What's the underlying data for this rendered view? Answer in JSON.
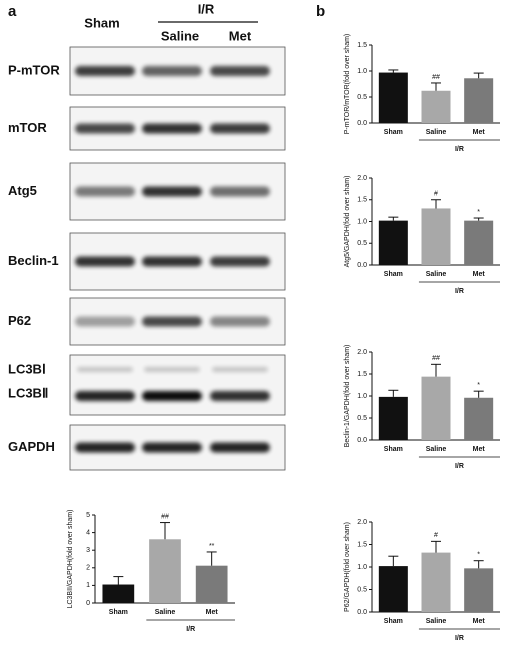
{
  "panels": [
    "a",
    "b"
  ],
  "blot": {
    "groups": {
      "sham": "Sham",
      "ir": "I/R",
      "saline": "Saline",
      "met": "Met"
    },
    "rows": [
      "P-mTOR",
      "mTOR",
      "Atg5",
      "Beclin-1",
      "P62",
      "LC3BⅠ",
      "LC3BⅡ",
      "GAPDH"
    ]
  },
  "chart_data": [
    {
      "type": "bar",
      "ylabel": "P-mTOR/mTOR(fold over sham)",
      "group": "I/R",
      "categories": [
        "Sham",
        "Saline",
        "Met"
      ],
      "values": [
        0.97,
        0.62,
        0.86
      ],
      "errors": [
        0.05,
        0.15,
        0.1
      ],
      "annotations": [
        null,
        "##",
        null
      ],
      "colors": [
        "#111111",
        "#a8a8a8",
        "#7a7a7a"
      ],
      "ylim": [
        0,
        1.5
      ],
      "yticks": [
        {
          "value": 0,
          "label": "0.0"
        },
        0.5,
        {
          "value": 1,
          "label": "1.0"
        },
        1.5
      ]
    },
    {
      "type": "bar",
      "ylabel": "Atg5/GAPDH(fold over sham)",
      "group": "I/R",
      "categories": [
        "Sham",
        "Saline",
        "Met"
      ],
      "values": [
        1.02,
        1.3,
        1.02
      ],
      "errors": [
        0.08,
        0.2,
        0.06
      ],
      "annotations": [
        null,
        "#",
        "*"
      ],
      "colors": [
        "#111111",
        "#a8a8a8",
        "#7a7a7a"
      ],
      "ylim": [
        0,
        2
      ],
      "yticks": [
        {
          "value": 0,
          "label": "0.0"
        },
        0.5,
        {
          "value": 1,
          "label": "1.0"
        },
        1.5,
        {
          "value": 2,
          "label": "2.0"
        }
      ]
    },
    {
      "type": "bar",
      "ylabel": "Beclin-1/GAPDH(fold over sham)",
      "group": "I/R",
      "categories": [
        "Sham",
        "Saline",
        "Met"
      ],
      "values": [
        0.98,
        1.44,
        0.96
      ],
      "errors": [
        0.15,
        0.28,
        0.15
      ],
      "annotations": [
        null,
        "##",
        "*"
      ],
      "colors": [
        "#111111",
        "#a8a8a8",
        "#7a7a7a"
      ],
      "ylim": [
        0,
        2
      ],
      "yticks": [
        {
          "value": 0,
          "label": "0.0"
        },
        0.5,
        {
          "value": 1,
          "label": "1.0"
        },
        1.5,
        {
          "value": 2,
          "label": "2.0"
        }
      ]
    },
    {
      "type": "bar",
      "ylabel": "P62/GAPDH(fold over sham)",
      "group": "I/R",
      "categories": [
        "Sham",
        "Saline",
        "Met"
      ],
      "values": [
        1.02,
        1.32,
        0.97
      ],
      "errors": [
        0.22,
        0.25,
        0.17
      ],
      "annotations": [
        null,
        "#",
        "*"
      ],
      "colors": [
        "#111111",
        "#a8a8a8",
        "#7a7a7a"
      ],
      "ylim": [
        0,
        2
      ],
      "yticks": [
        {
          "value": 0,
          "label": "0.0"
        },
        0.5,
        {
          "value": 1,
          "label": "1.0"
        },
        1.5,
        {
          "value": 2,
          "label": "2.0"
        }
      ]
    },
    {
      "type": "bar",
      "ylabel": "LC3BII/GAPDH(fold over sham)",
      "group": "I/R",
      "categories": [
        "Sham",
        "Saline",
        "Met"
      ],
      "values": [
        1.05,
        3.62,
        2.12
      ],
      "errors": [
        0.45,
        0.95,
        0.78
      ],
      "annotations": [
        null,
        "##",
        "**"
      ],
      "colors": [
        "#111111",
        "#a8a8a8",
        "#7a7a7a"
      ],
      "ylim": [
        0,
        5
      ],
      "yticks": [
        0,
        1,
        2,
        3,
        4,
        5
      ]
    }
  ]
}
